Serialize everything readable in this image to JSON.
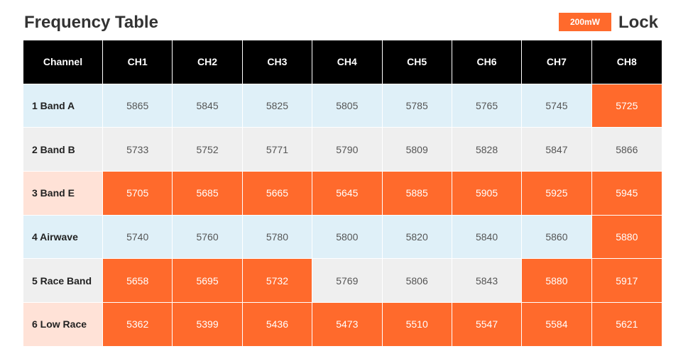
{
  "header": {
    "title": "Frequency Table",
    "power_badge": "200mW",
    "lock_label": "Lock"
  },
  "colors": {
    "accent": "#ff6a2c",
    "header_bg": "#000000",
    "row_blue": "#dff0f8",
    "row_gray": "#efefef",
    "row_peach": "#ffe2d7"
  },
  "table": {
    "columns": [
      "Channel",
      "CH1",
      "CH2",
      "CH3",
      "CH4",
      "CH5",
      "CH6",
      "CH7",
      "CH8"
    ],
    "rows": [
      {
        "label": "1 Band A",
        "tint": "blue",
        "values": [
          "5865",
          "5845",
          "5825",
          "5805",
          "5785",
          "5765",
          "5745",
          "5725"
        ],
        "highlighted": [
          false,
          false,
          false,
          false,
          false,
          false,
          false,
          true
        ]
      },
      {
        "label": "2 Band B",
        "tint": "gray",
        "values": [
          "5733",
          "5752",
          "5771",
          "5790",
          "5809",
          "5828",
          "5847",
          "5866"
        ],
        "highlighted": [
          false,
          false,
          false,
          false,
          false,
          false,
          false,
          false
        ]
      },
      {
        "label": "3 Band E",
        "tint": "peach",
        "values": [
          "5705",
          "5685",
          "5665",
          "5645",
          "5885",
          "5905",
          "5925",
          "5945"
        ],
        "highlighted": [
          true,
          true,
          true,
          true,
          true,
          true,
          true,
          true
        ]
      },
      {
        "label": "4 Airwave",
        "tint": "blue",
        "values": [
          "5740",
          "5760",
          "5780",
          "5800",
          "5820",
          "5840",
          "5860",
          "5880"
        ],
        "highlighted": [
          false,
          false,
          false,
          false,
          false,
          false,
          false,
          true
        ]
      },
      {
        "label": "5 Race Band",
        "tint": "gray",
        "values": [
          "5658",
          "5695",
          "5732",
          "5769",
          "5806",
          "5843",
          "5880",
          "5917"
        ],
        "highlighted": [
          true,
          true,
          true,
          false,
          false,
          false,
          true,
          true
        ]
      },
      {
        "label": "6 Low Race",
        "tint": "peach",
        "values": [
          "5362",
          "5399",
          "5436",
          "5473",
          "5510",
          "5547",
          "5584",
          "5621"
        ],
        "highlighted": [
          true,
          true,
          true,
          true,
          true,
          true,
          true,
          true
        ]
      }
    ]
  }
}
